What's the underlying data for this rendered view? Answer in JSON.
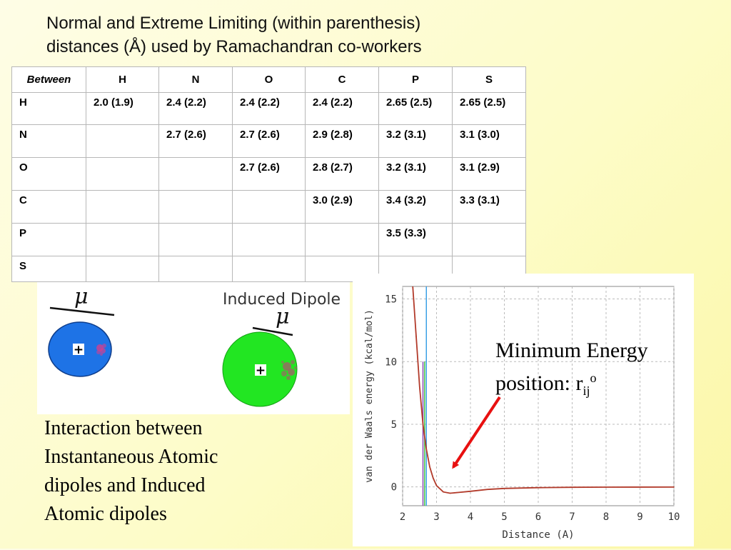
{
  "title": {
    "line1": "Normal and Extreme Limiting (within parenthesis)",
    "line2": "distances (Å) used by Ramachandran co-workers"
  },
  "table": {
    "corner": "Between",
    "columns": [
      "H",
      "N",
      "O",
      "C",
      "P",
      "S"
    ],
    "rows": [
      {
        "label": "H",
        "cells": [
          "2.0 (1.9)",
          "2.4 (2.2)",
          "2.4 (2.2)",
          "2.4 (2.2)",
          "2.65 (2.5)",
          "2.65 (2.5)"
        ]
      },
      {
        "label": "N",
        "cells": [
          "",
          "2.7 (2.6)",
          "2.7 (2.6)",
          "2.9 (2.8)",
          "3.2 (3.1)",
          "3.1 (3.0)"
        ]
      },
      {
        "label": "O",
        "cells": [
          "",
          "",
          "2.7 (2.6)",
          "2.8 (2.7)",
          "3.2 (3.1)",
          "3.1 (2.9)"
        ]
      },
      {
        "label": "C",
        "cells": [
          "",
          "",
          "",
          "3.0 (2.9)",
          "3.4 (3.2)",
          "3.3 (3.1)"
        ]
      },
      {
        "label": "P",
        "cells": [
          "",
          "",
          "",
          "",
          "3.5 (3.3)",
          ""
        ]
      },
      {
        "label": "S",
        "cells": [
          "",
          "",
          "",
          "",
          "",
          ""
        ]
      }
    ]
  },
  "dipole": {
    "mu_symbol": "μ",
    "induced_label": "Induced Dipole",
    "plus_symbol": "+",
    "atom1_color": "#1e73e6",
    "atom2_color": "#22e622"
  },
  "caption": {
    "line1": "Interaction between",
    "line2": "Instantaneous Atomic",
    "line3": "dipoles and Induced",
    "line4": "Atomic dipoles"
  },
  "annotation": {
    "line1": "Minimum Energy",
    "line2_prefix": "position:  r",
    "line2_sub": "ij",
    "line2_sup": "o",
    "arrow_color": "#e81010"
  },
  "chart_data": {
    "type": "line",
    "xlabel": "Distance (A)",
    "ylabel": "van der Waals energy (kcal/mol)",
    "xlim": [
      2,
      10
    ],
    "ylim": [
      -1.5,
      16
    ],
    "xticks": [
      2,
      3,
      4,
      5,
      6,
      7,
      8,
      9,
      10
    ],
    "yticks": [
      0,
      5,
      10,
      15
    ],
    "grid": true,
    "curve_color": "#b23a2a",
    "series": [
      {
        "x": [
          2.3,
          2.4,
          2.5,
          2.6,
          2.7,
          2.8,
          2.9,
          3.0,
          3.2,
          3.4,
          3.6,
          4.0,
          4.5,
          5.0,
          6.0,
          7.0,
          8.0,
          10.0
        ],
        "values": [
          16.5,
          12.0,
          8.0,
          5.0,
          3.0,
          1.6,
          0.7,
          0.1,
          -0.4,
          -0.5,
          -0.45,
          -0.35,
          -0.2,
          -0.12,
          -0.06,
          -0.03,
          -0.02,
          -0.01
        ]
      }
    ],
    "vlines": [
      {
        "x": 2.6,
        "color": "#8c46b4",
        "y_top": 10
      },
      {
        "x": 2.65,
        "color": "#46c846",
        "y_top": 10
      },
      {
        "x": 2.7,
        "color": "#3ca0e6",
        "y_top": 16
      }
    ]
  }
}
